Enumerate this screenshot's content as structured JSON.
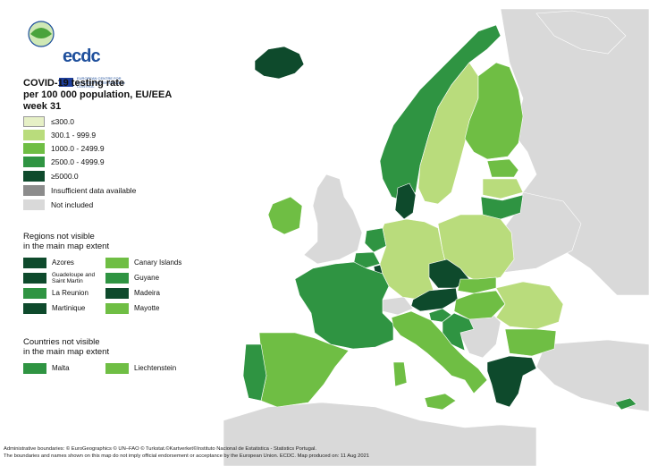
{
  "logo": {
    "name": "ecdc",
    "subtitle": "EUROPEAN CENTRE FOR DISEASE PREVENTION AND CONTROL"
  },
  "title": [
    "COVID-19 testing rate",
    "per 100 000 population, EU/EEA",
    "week 31"
  ],
  "legend": {
    "items": [
      {
        "label": "≤300.0",
        "color": "#e6f0c6"
      },
      {
        "label": "300.1 - 999.9",
        "color": "#b9dc7c"
      },
      {
        "label": "1000.0 - 2499.9",
        "color": "#6fbe44"
      },
      {
        "label": "2500.0 - 4999.9",
        "color": "#2f9442"
      },
      {
        "label": "≥5000.0",
        "color": "#0e4a2c"
      },
      {
        "label": "Insufficient data available",
        "color": "#8c8c8c"
      },
      {
        "label": "Not included",
        "color": "#d9d9d9"
      }
    ]
  },
  "regions_section": {
    "title": [
      "Regions not visible",
      "in the main map extent"
    ],
    "items": [
      {
        "label": "Azores",
        "color": "#0e4a2c"
      },
      {
        "label": "Canary Islands",
        "color": "#6fbe44"
      },
      {
        "label": "Guadeloupe and Saint Martin",
        "color": "#0e4a2c"
      },
      {
        "label": "Guyane",
        "color": "#2f9442"
      },
      {
        "label": "La Reunion",
        "color": "#2f9442"
      },
      {
        "label": "Madeira",
        "color": "#0e4a2c"
      },
      {
        "label": "Martinique",
        "color": "#0e4a2c"
      },
      {
        "label": "Mayotte",
        "color": "#6fbe44"
      }
    ]
  },
  "countries_section": {
    "title": [
      "Countries not visible",
      "in the main map extent"
    ],
    "items": [
      {
        "label": "Malta",
        "color": "#2f9442"
      },
      {
        "label": "Liechtenstein",
        "color": "#6fbe44"
      }
    ]
  },
  "footer": [
    "Administrative boundaries: © EuroGeographics © UN–FAO © Turkstat.©Kartverket©Instituto Nacional de Estatistica - Statistics Portugal.",
    "The boundaries and names shown on this map do not imply official endorsement or acceptance by the European Union. ECDC. Map produced on: 11 Aug 2021"
  ],
  "map": {
    "colors": {
      "sea": "#ffffff",
      "not_included": "#d9d9d9",
      "border": "#ffffff"
    },
    "countries": [
      {
        "name": "Iceland",
        "value": "≥5000.0",
        "color": "#0e4a2c"
      },
      {
        "name": "Norway",
        "value": "2500.0 - 4999.9",
        "color": "#2f9442"
      },
      {
        "name": "Sweden",
        "value": "300.1 - 999.9",
        "color": "#b9dc7c"
      },
      {
        "name": "Finland",
        "value": "1000.0 - 2499.9",
        "color": "#6fbe44"
      },
      {
        "name": "Estonia",
        "value": "1000.0 - 2499.9",
        "color": "#6fbe44"
      },
      {
        "name": "Latvia",
        "value": "300.1 - 999.9",
        "color": "#b9dc7c"
      },
      {
        "name": "Lithuania",
        "value": "2500.0 - 4999.9",
        "color": "#2f9442"
      },
      {
        "name": "Denmark",
        "value": "≥5000.0",
        "color": "#0e4a2c"
      },
      {
        "name": "Ireland",
        "value": "1000.0 - 2499.9",
        "color": "#6fbe44"
      },
      {
        "name": "Netherlands",
        "value": "2500.0 - 4999.9",
        "color": "#2f9442"
      },
      {
        "name": "Belgium",
        "value": "2500.0 - 4999.9",
        "color": "#2f9442"
      },
      {
        "name": "Luxembourg",
        "value": "≥5000.0",
        "color": "#0e4a2c"
      },
      {
        "name": "France",
        "value": "2500.0 - 4999.9",
        "color": "#2f9442"
      },
      {
        "name": "Germany",
        "value": "300.1 - 999.9",
        "color": "#b9dc7c"
      },
      {
        "name": "Poland",
        "value": "300.1 - 999.9",
        "color": "#b9dc7c"
      },
      {
        "name": "Czechia",
        "value": "≥5000.0",
        "color": "#0e4a2c"
      },
      {
        "name": "Slovakia",
        "value": "1000.0 - 2499.9",
        "color": "#6fbe44"
      },
      {
        "name": "Austria",
        "value": "≥5000.0",
        "color": "#0e4a2c"
      },
      {
        "name": "Hungary",
        "value": "1000.0 - 2499.9",
        "color": "#6fbe44"
      },
      {
        "name": "Slovenia",
        "value": "2500.0 - 4999.9",
        "color": "#2f9442"
      },
      {
        "name": "Croatia",
        "value": "2500.0 - 4999.9",
        "color": "#2f9442"
      },
      {
        "name": "Romania",
        "value": "300.1 - 999.9",
        "color": "#b9dc7c"
      },
      {
        "name": "Bulgaria",
        "value": "1000.0 - 2499.9",
        "color": "#6fbe44"
      },
      {
        "name": "Greece",
        "value": "≥5000.0",
        "color": "#0e4a2c"
      },
      {
        "name": "Italy",
        "value": "1000.0 - 2499.9",
        "color": "#6fbe44"
      },
      {
        "name": "Spain",
        "value": "1000.0 - 2499.9",
        "color": "#6fbe44"
      },
      {
        "name": "Portugal",
        "value": "2500.0 - 4999.9",
        "color": "#2f9442"
      },
      {
        "name": "Cyprus",
        "value": "2500.0 - 4999.9",
        "color": "#2f9442"
      }
    ]
  }
}
